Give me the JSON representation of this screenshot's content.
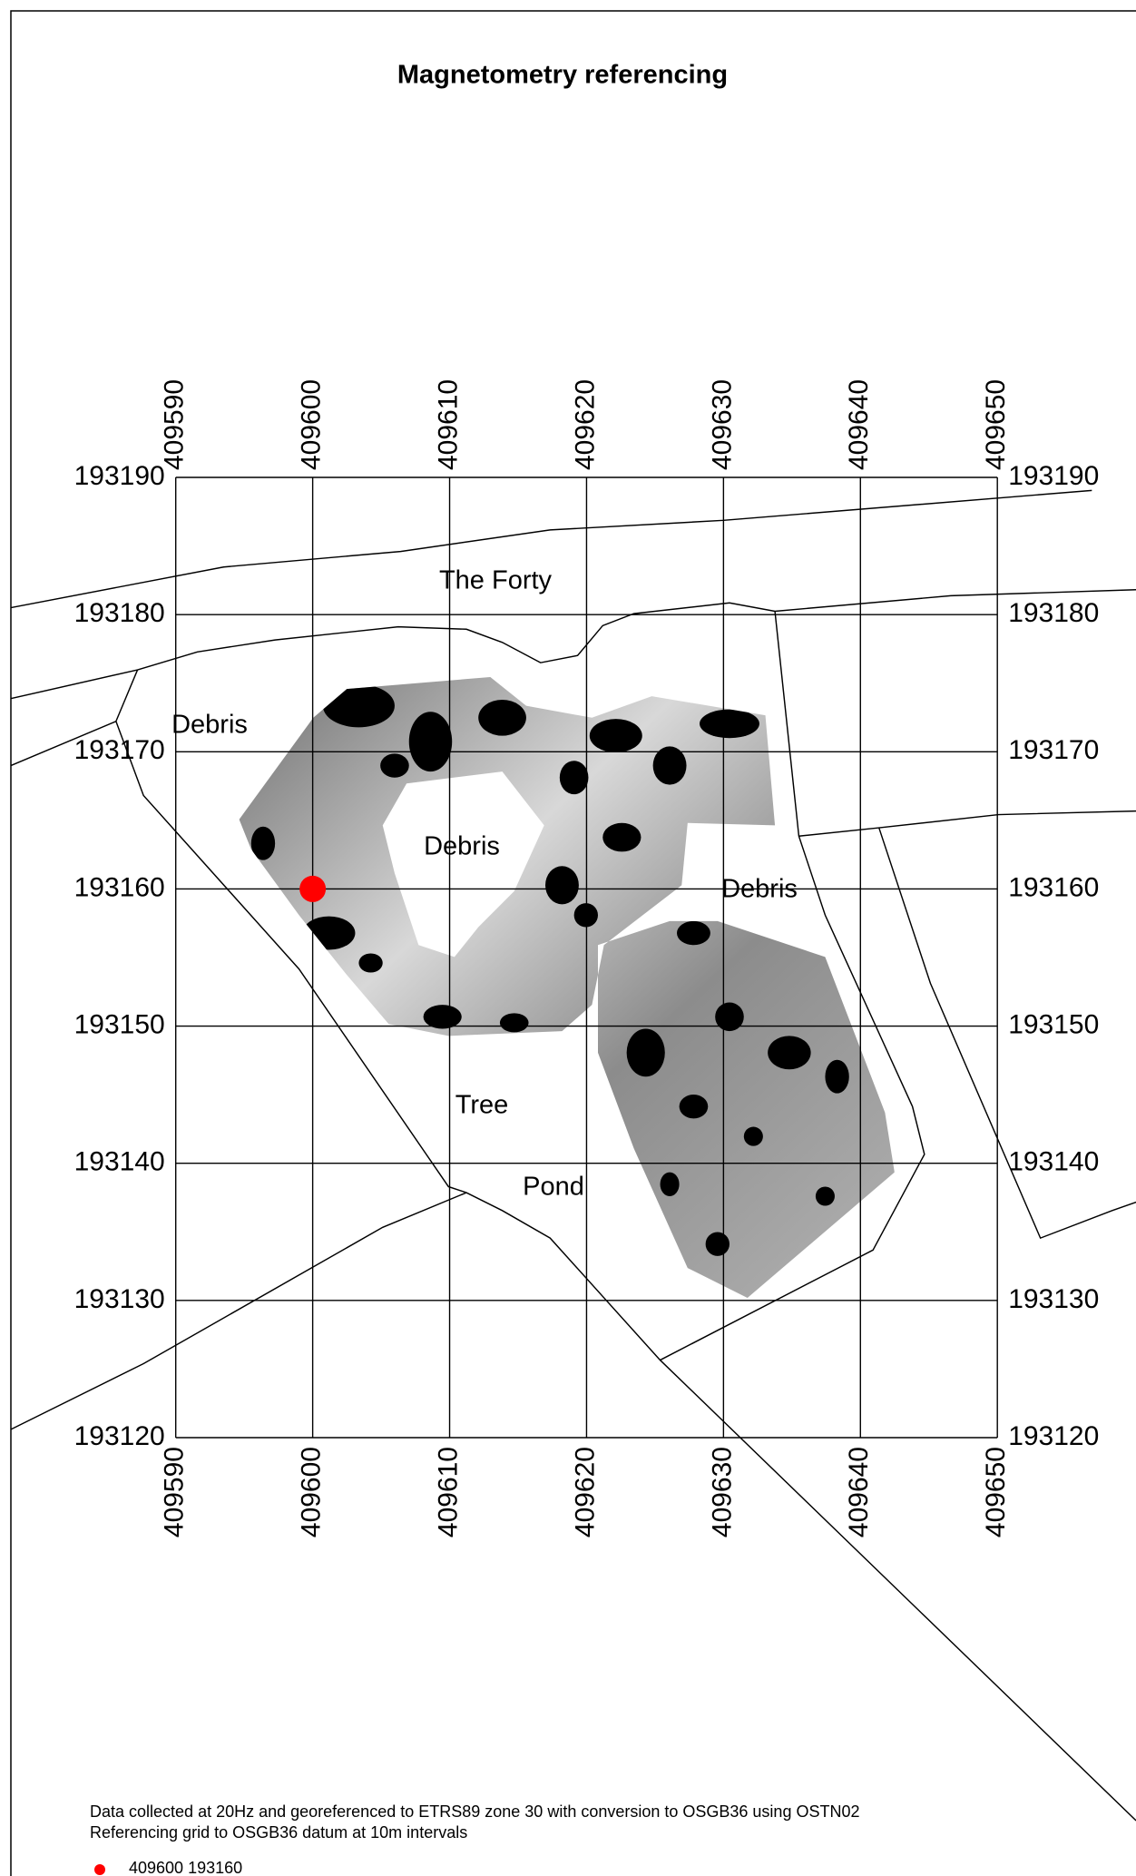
{
  "title": "Magnetometry referencing",
  "grid": {
    "eastings": [
      409590,
      409600,
      409610,
      409620,
      409630,
      409640,
      409650
    ],
    "northings": [
      193190,
      193180,
      193170,
      193160,
      193150,
      193140,
      193130,
      193120
    ]
  },
  "labels": [
    "The Forty",
    "Debris",
    "Debris",
    "Debris",
    "Tree",
    "Pond"
  ],
  "notes": [
    "Data collected at 20Hz and georeferenced to ETRS89 zone 30 with conversion to OSGB36 using OSTN02",
    "Referencing grid to OSGB36 datum at 10m intervals"
  ],
  "point": {
    "easting": 409600,
    "northing": 193160
  },
  "legend": {
    "label": "409600 193160"
  }
}
